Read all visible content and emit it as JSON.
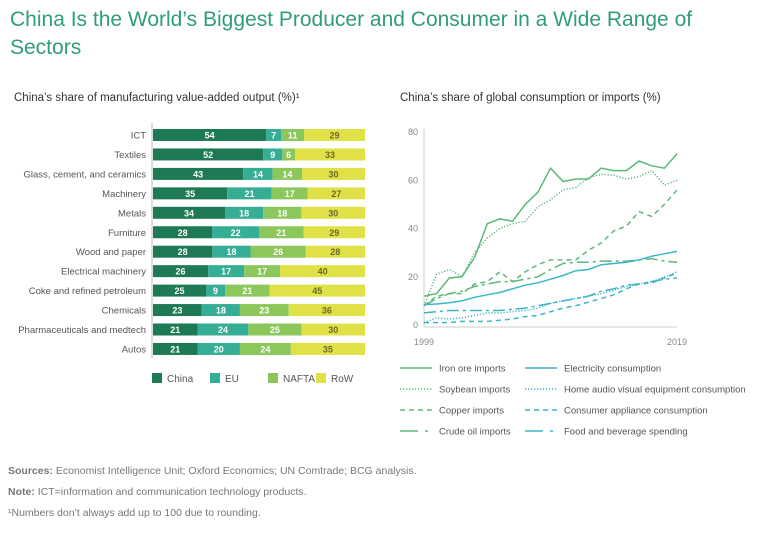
{
  "title": "China Is the World’s Biggest Producer and Consumer in a Wide Range of Sectors",
  "footer": {
    "sources_label": "Sources:",
    "sources": "Economist Intelligence Unit; Oxford Economics; UN Comtrade; BCG analysis.",
    "note_label": "Note:",
    "note": "ICT=information and communication technology products.",
    "footnote": "¹Numbers don’t always add up to 100 due to rounding."
  },
  "chart_data": [
    {
      "type": "bar",
      "stacked": true,
      "orientation": "horizontal",
      "title": "China’s share of manufacturing value-added output (%)¹",
      "categories": [
        "ICT",
        "Textiles",
        "Glass, cement, and ceramics",
        "Machinery",
        "Metals",
        "Furniture",
        "Wood and paper",
        "Electrical machinery",
        "Coke and refined petroleum",
        "Chemicals",
        "Pharmaceuticals and medtech",
        "Autos"
      ],
      "series": [
        {
          "name": "China",
          "color": "#1e7a55",
          "values": [
            54,
            52,
            43,
            35,
            34,
            28,
            28,
            26,
            25,
            23,
            21,
            21
          ]
        },
        {
          "name": "EU",
          "color": "#36ae96",
          "values": [
            7,
            9,
            14,
            21,
            18,
            22,
            18,
            17,
            9,
            18,
            24,
            20
          ]
        },
        {
          "name": "NAFTA",
          "color": "#8cc75c",
          "values": [
            11,
            6,
            14,
            17,
            18,
            21,
            26,
            17,
            21,
            23,
            25,
            24
          ]
        },
        {
          "name": "RoW",
          "color": "#dfe146",
          "values": [
            29,
            33,
            30,
            27,
            30,
            29,
            28,
            40,
            45,
            36,
            30,
            35
          ]
        }
      ],
      "legend": "bottom"
    },
    {
      "type": "line",
      "title": "China’s share of global consumption or imports (%)",
      "x": [
        1999,
        2000,
        2001,
        2002,
        2003,
        2004,
        2005,
        2006,
        2007,
        2008,
        2009,
        2010,
        2011,
        2012,
        2013,
        2014,
        2015,
        2016,
        2017,
        2018,
        2019
      ],
      "x_tick_labels": [
        "1999",
        "2019"
      ],
      "ylim": [
        0,
        80
      ],
      "y_ticks": [
        0,
        20,
        40,
        60,
        80
      ],
      "legend": "bottom",
      "series": [
        {
          "name": "Iron ore imports",
          "color": "#5cb87a",
          "dash": "solid",
          "values": [
            12,
            13,
            19.5,
            20,
            28,
            42,
            44,
            43,
            50,
            55,
            65,
            59.5,
            60.5,
            60.5,
            65,
            64,
            64,
            68,
            66,
            65,
            71
          ]
        },
        {
          "name": "Soybean imports",
          "color": "#5cb87a",
          "dash": "dotted",
          "values": [
            8,
            21,
            23,
            20,
            30,
            36,
            40,
            42,
            43,
            49,
            52,
            56,
            57,
            61,
            62.5,
            62,
            60.5,
            61.5,
            64,
            58,
            60
          ]
        },
        {
          "name": "Copper imports",
          "color": "#5cb87a",
          "dash": "dashed",
          "values": [
            8,
            12,
            13,
            13,
            17,
            18,
            22,
            18,
            22,
            25,
            27,
            27,
            27,
            31,
            34,
            39,
            41,
            47,
            45,
            50,
            56
          ]
        },
        {
          "name": "Crude oil imports",
          "color": "#5cb87a",
          "dash": "longdash",
          "values": [
            8,
            11,
            13,
            14,
            16,
            17,
            18,
            18,
            19,
            20,
            23,
            25.5,
            26,
            26,
            26.5,
            26.5,
            26.5,
            27,
            27.5,
            26.5,
            26
          ]
        },
        {
          "name": "Electricity consumption",
          "color": "#3bb6c8",
          "dash": "solid",
          "values": [
            8.5,
            8.7,
            9.2,
            10,
            11.5,
            12.5,
            13.5,
            15,
            16.5,
            17.5,
            19,
            20.5,
            22.5,
            23,
            25,
            25.5,
            26,
            27,
            28.5,
            29.5,
            30.5
          ]
        },
        {
          "name": "Home audio visual equipment consumption",
          "color": "#3bb6c8",
          "dash": "dotted",
          "values": [
            1,
            3,
            2.5,
            3,
            4,
            5,
            5,
            5.5,
            6,
            7,
            9,
            10,
            11,
            12,
            13,
            14.5,
            16,
            17,
            18,
            20,
            22
          ]
        },
        {
          "name": "Consumer appliance consumption",
          "color": "#3bb6c8",
          "dash": "dashed",
          "values": [
            1,
            1,
            1,
            1.5,
            1.5,
            1.5,
            2,
            2.5,
            3.5,
            4,
            5.5,
            7,
            8,
            9.5,
            11,
            12.5,
            15,
            17,
            17.5,
            19.5,
            21.5
          ]
        },
        {
          "name": "Food and beverage spending",
          "color": "#3bb6c8",
          "dash": "longdash",
          "values": [
            5,
            5.5,
            6,
            6,
            6,
            6,
            6,
            6.5,
            7,
            8,
            9,
            10,
            11,
            12,
            14,
            15,
            16.5,
            17,
            18,
            19,
            19.5
          ]
        }
      ]
    }
  ]
}
